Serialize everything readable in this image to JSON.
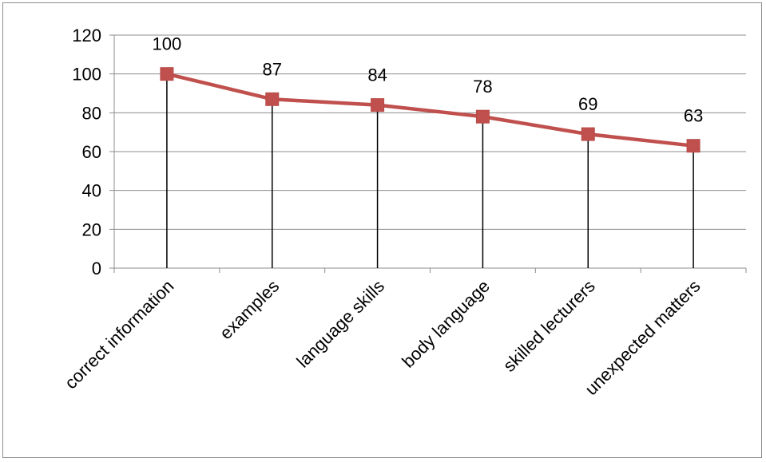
{
  "chart_data": {
    "type": "line",
    "title": "",
    "xlabel": "",
    "ylabel": "",
    "categories": [
      "correct information",
      "examples",
      "language skills",
      "body language",
      "skilled lecturers",
      "unexpected matters"
    ],
    "series": [
      {
        "values": [
          100,
          87,
          84,
          78,
          69,
          63
        ],
        "color": "#c0504d"
      }
    ],
    "data_labels": [
      "100",
      "87",
      "84",
      "78",
      "69",
      "63"
    ],
    "ylim": [
      0,
      120
    ],
    "yticks": [
      0,
      20,
      40,
      60,
      80,
      100,
      120
    ],
    "ytick_labels": [
      "0",
      "20",
      "40",
      "60",
      "80",
      "100",
      "120"
    ],
    "grid": "horizontal",
    "drop_lines": true,
    "marker": "square",
    "legend": "none"
  }
}
